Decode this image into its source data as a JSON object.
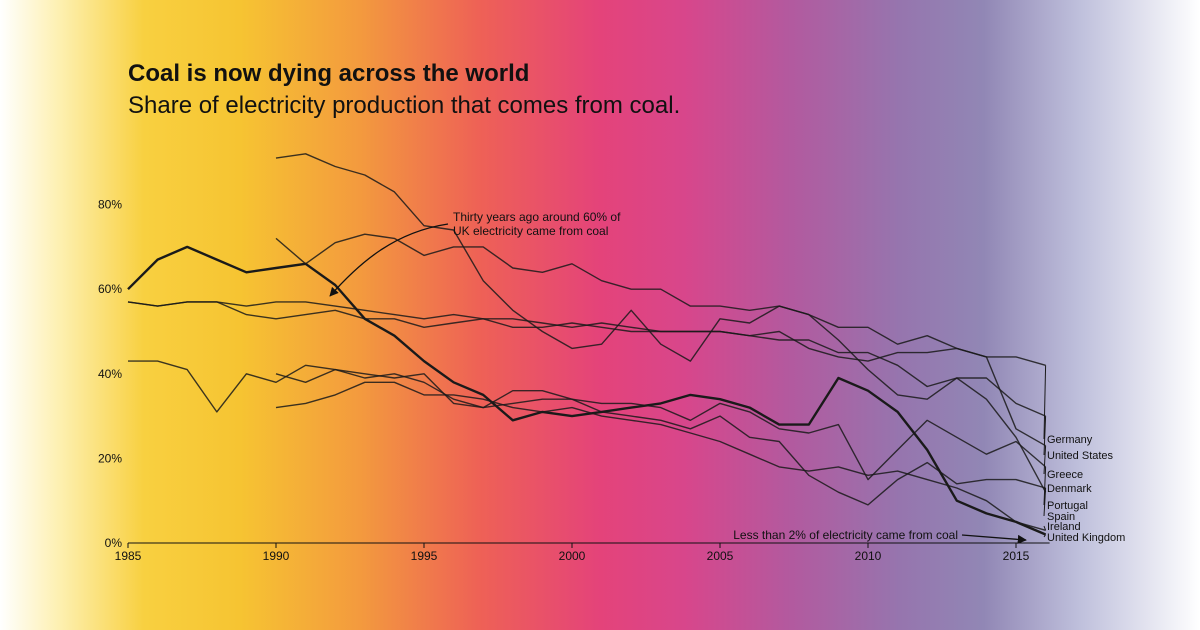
{
  "chart_data": {
    "type": "line",
    "title": "Coal is now dying across the world",
    "subtitle": "Share of electricity production that comes from coal.",
    "xlabel": "",
    "ylabel": "",
    "xlim": [
      1985,
      2016
    ],
    "ylim": [
      0,
      95
    ],
    "x_ticks": [
      1985,
      1990,
      1995,
      2000,
      2005,
      2010,
      2015
    ],
    "y_ticks": [
      0,
      20,
      40,
      60,
      80
    ],
    "y_tick_labels": [
      "0%",
      "20%",
      "40%",
      "60%",
      "80%"
    ],
    "grid": false,
    "legend": "direct labels at right end of lines",
    "series": [
      {
        "name": "Germany",
        "x": [
          1985,
          1986,
          1987,
          1988,
          1989,
          1990,
          1991,
          1992,
          1993,
          1994,
          1995,
          1996,
          1997,
          1998,
          1999,
          2000,
          2001,
          2002,
          2003,
          2004,
          2005,
          2006,
          2007,
          2008,
          2009,
          2010,
          2011,
          2012,
          2013,
          2014,
          2015,
          2016
        ],
        "values": [
          57,
          56,
          57,
          57,
          56,
          57,
          57,
          56,
          55,
          54,
          53,
          54,
          53,
          53,
          52,
          51,
          52,
          51,
          50,
          50,
          50,
          49,
          50,
          46,
          44,
          43,
          45,
          45,
          46,
          44,
          44,
          42
        ]
      },
      {
        "name": "United States",
        "x": [
          1985,
          1986,
          1987,
          1988,
          1989,
          1990,
          1991,
          1992,
          1993,
          1994,
          1995,
          1996,
          1997,
          1998,
          1999,
          2000,
          2001,
          2002,
          2003,
          2004,
          2005,
          2006,
          2007,
          2008,
          2009,
          2010,
          2011,
          2012,
          2013,
          2014,
          2015,
          2016
        ],
        "values": [
          57,
          56,
          57,
          57,
          54,
          53,
          54,
          55,
          53,
          53,
          51,
          52,
          53,
          51,
          51,
          52,
          51,
          50,
          50,
          50,
          50,
          49,
          48,
          48,
          45,
          45,
          42,
          37,
          39,
          39,
          33,
          30
        ]
      },
      {
        "name": "Greece",
        "x": [
          1990,
          1991,
          1992,
          1993,
          1994,
          1995,
          1996,
          1997,
          1998,
          1999,
          2000,
          2001,
          2002,
          2003,
          2004,
          2005,
          2006,
          2007,
          2008,
          2009,
          2010,
          2011,
          2012,
          2013,
          2014,
          2015,
          2016
        ],
        "values": [
          72,
          66,
          71,
          73,
          72,
          68,
          70,
          70,
          65,
          64,
          66,
          62,
          60,
          60,
          56,
          56,
          55,
          56,
          54,
          51,
          51,
          47,
          49,
          46,
          44,
          27,
          23
        ]
      },
      {
        "name": "Denmark",
        "x": [
          1990,
          1991,
          1992,
          1993,
          1994,
          1995,
          1996,
          1997,
          1998,
          1999,
          2000,
          2001,
          2002,
          2003,
          2004,
          2005,
          2006,
          2007,
          2008,
          2009,
          2010,
          2011,
          2012,
          2013,
          2014,
          2015,
          2016
        ],
        "values": [
          91,
          92,
          89,
          87,
          83,
          75,
          74,
          62,
          55,
          50,
          46,
          47,
          55,
          47,
          43,
          53,
          52,
          56,
          54,
          48,
          41,
          35,
          34,
          39,
          34,
          25,
          12
        ]
      },
      {
        "name": "Portugal",
        "x": [
          1985,
          1986,
          1987,
          1988,
          1989,
          1990,
          1991,
          1992,
          1993,
          1994,
          1995,
          1996,
          1997,
          1998,
          1999,
          2000,
          2001,
          2002,
          2003,
          2004,
          2005,
          2006,
          2007,
          2008,
          2009,
          2010,
          2011,
          2012,
          2013,
          2014,
          2015,
          2016
        ],
        "values": [
          43,
          43,
          41,
          31,
          40,
          38,
          42,
          41,
          39,
          40,
          38,
          34,
          32,
          33,
          34,
          34,
          33,
          33,
          32,
          29,
          33,
          31,
          27,
          26,
          28,
          15,
          22,
          29,
          25,
          21,
          24,
          18
        ]
      },
      {
        "name": "Spain",
        "x": [
          1990,
          1991,
          1992,
          1993,
          1994,
          1995,
          1996,
          1997,
          1998,
          1999,
          2000,
          2001,
          2002,
          2003,
          2004,
          2005,
          2006,
          2007,
          2008,
          2009,
          2010,
          2011,
          2012,
          2013,
          2014,
          2015,
          2016
        ],
        "values": [
          40,
          38,
          41,
          40,
          39,
          40,
          33,
          32,
          36,
          36,
          34,
          31,
          30,
          29,
          27,
          30,
          25,
          24,
          16,
          12,
          9,
          15,
          19,
          14,
          15,
          15,
          13
        ]
      },
      {
        "name": "Ireland",
        "x": [
          1990,
          1991,
          1992,
          1993,
          1994,
          1995,
          1996,
          1997,
          1998,
          1999,
          2000,
          2001,
          2002,
          2003,
          2004,
          2005,
          2006,
          2007,
          2008,
          2009,
          2010,
          2011,
          2012,
          2013,
          2014,
          2015,
          2016
        ],
        "values": [
          32,
          33,
          35,
          38,
          38,
          35,
          35,
          34,
          32,
          31,
          32,
          30,
          29,
          28,
          26,
          24,
          21,
          18,
          17,
          18,
          16,
          17,
          15,
          13,
          10,
          5,
          3
        ]
      },
      {
        "name": "United Kingdom",
        "x": [
          1985,
          1986,
          1987,
          1988,
          1989,
          1990,
          1991,
          1992,
          1993,
          1994,
          1995,
          1996,
          1997,
          1998,
          1999,
          2000,
          2001,
          2002,
          2003,
          2004,
          2005,
          2006,
          2007,
          2008,
          2009,
          2010,
          2011,
          2012,
          2013,
          2014,
          2015,
          2016
        ],
        "values": [
          60,
          67,
          70,
          67,
          64,
          65,
          66,
          61,
          53,
          49,
          43,
          38,
          35,
          29,
          31,
          30,
          31,
          32,
          33,
          35,
          34,
          32,
          28,
          28,
          39,
          36,
          31,
          22,
          10,
          7,
          5,
          2
        ]
      }
    ],
    "annotations": [
      {
        "text_lines": [
          "Thirty years ago around 60% of",
          "UK electricity came from coal"
        ]
      },
      {
        "text_lines": [
          "Less than 2% of electricity came from coal"
        ]
      }
    ]
  },
  "style": {
    "line_color": "#1a1a1a",
    "highlight_series": "United Kingdom"
  }
}
